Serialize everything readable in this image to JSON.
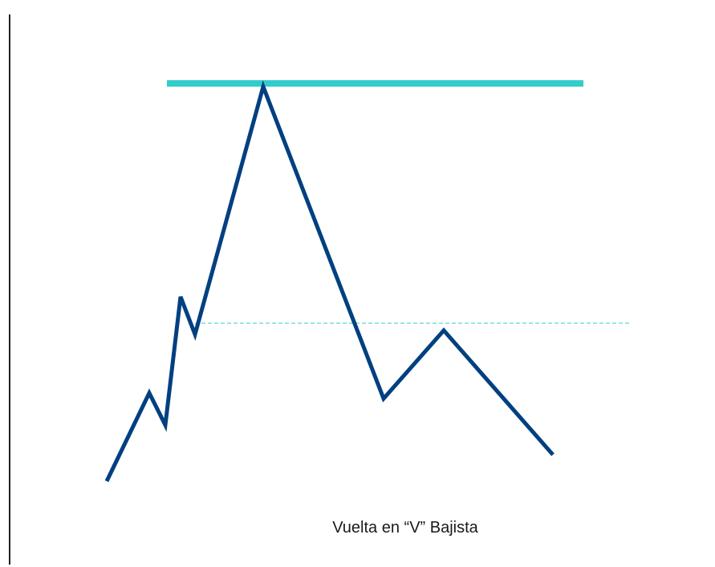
{
  "caption": "Vuelta en “V” Bajista"
}
